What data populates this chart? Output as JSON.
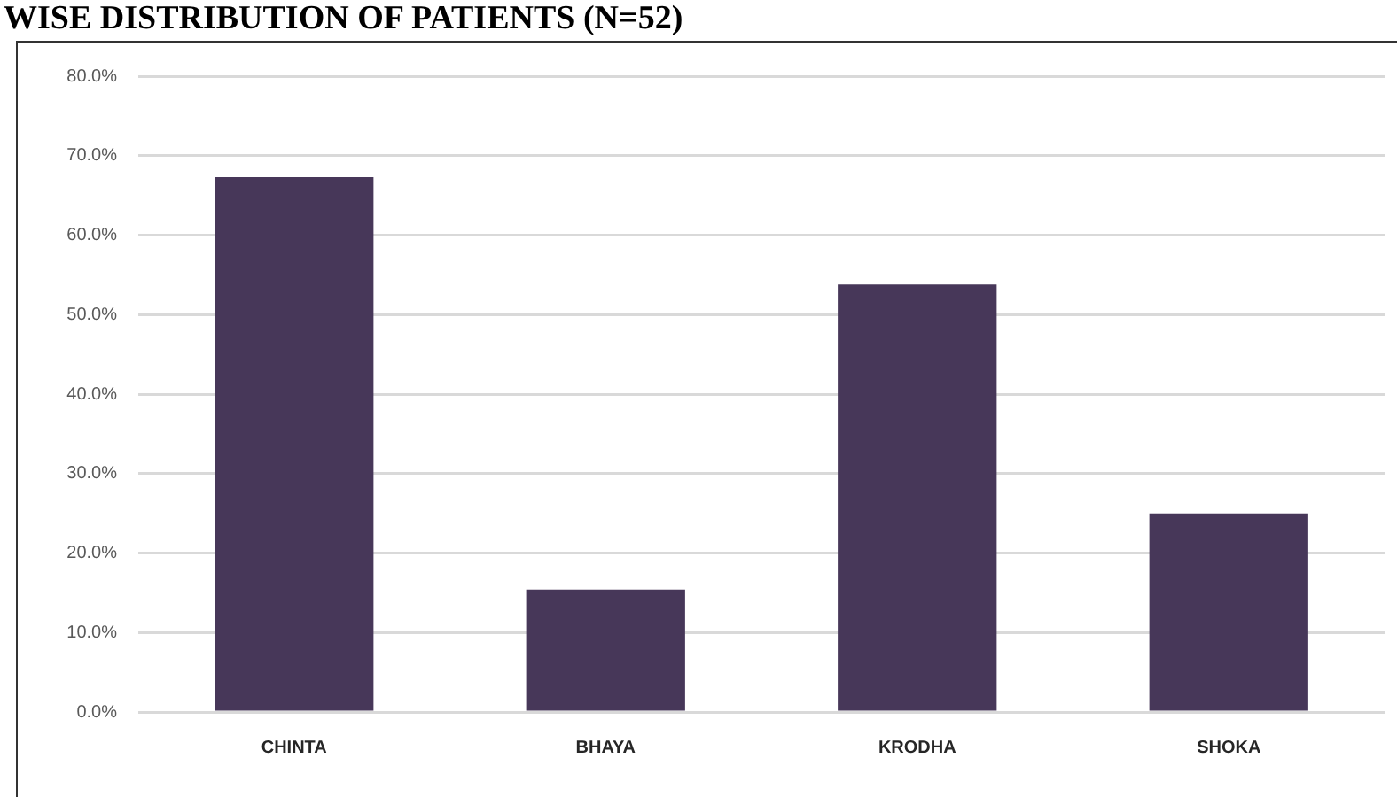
{
  "chart_data": {
    "type": "bar",
    "title": "WISE DISTRIBUTION OF PATIENTS (N=52)",
    "categories": [
      "CHINTA",
      "BHAYA",
      "KRODHA",
      "SHOKA"
    ],
    "values": [
      67.3,
      15.4,
      53.8,
      25.0
    ],
    "color": "#473759",
    "ylim": [
      0,
      80
    ],
    "yticks": [
      {
        "value": 0,
        "label": "0.0%"
      },
      {
        "value": 10,
        "label": "10.0%"
      },
      {
        "value": 20,
        "label": "20.0%"
      },
      {
        "value": 30,
        "label": "30.0%"
      },
      {
        "value": 40,
        "label": "40.0%"
      },
      {
        "value": 50,
        "label": "50.0%"
      },
      {
        "value": 60,
        "label": "60.0%"
      },
      {
        "value": 70,
        "label": "70.0%"
      },
      {
        "value": 80,
        "label": "80.0%"
      }
    ],
    "grid": "y"
  }
}
